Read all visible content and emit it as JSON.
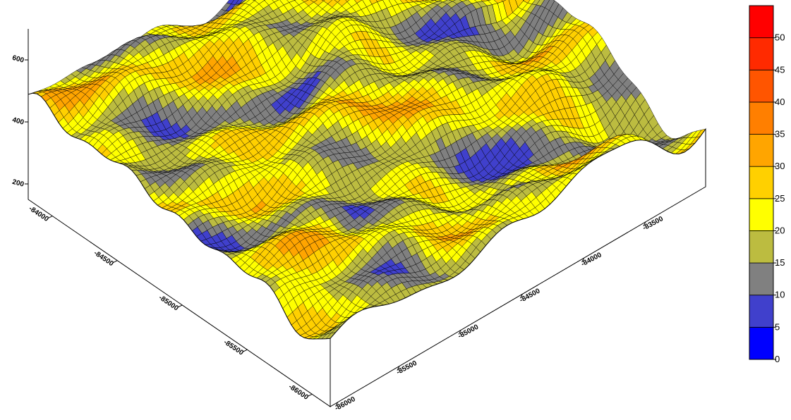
{
  "chart_data": {
    "type": "surface3d",
    "title": "",
    "x_axis": {
      "label": "",
      "ticks": [
        "-84000",
        "-84500",
        "-85000",
        "-85500",
        "-86000"
      ]
    },
    "y_axis": {
      "label": "",
      "ticks": [
        "-86000",
        "-85500",
        "-85000",
        "-84500",
        "-84000",
        "-83500"
      ]
    },
    "z_axis": {
      "label": "",
      "ticks": [
        "200",
        "400",
        "600"
      ],
      "range": [
        150,
        700
      ]
    },
    "colorbar": {
      "levels": [
        0,
        5,
        10,
        15,
        20,
        25,
        30,
        35,
        40,
        45,
        50,
        55
      ],
      "tick_labels": [
        "0",
        "5",
        "10",
        "15",
        "20",
        "25",
        "30",
        "35",
        "40",
        "45",
        "50"
      ],
      "colors": [
        "#0000ff",
        "#4040cc",
        "#808080",
        "#bcbc40",
        "#ffff00",
        "#ffd000",
        "#ffa500",
        "#ff7f00",
        "#ff5500",
        "#ff2a00",
        "#ff0000"
      ]
    },
    "grid": "wireframe mesh on surface",
    "legend_position": "right"
  }
}
